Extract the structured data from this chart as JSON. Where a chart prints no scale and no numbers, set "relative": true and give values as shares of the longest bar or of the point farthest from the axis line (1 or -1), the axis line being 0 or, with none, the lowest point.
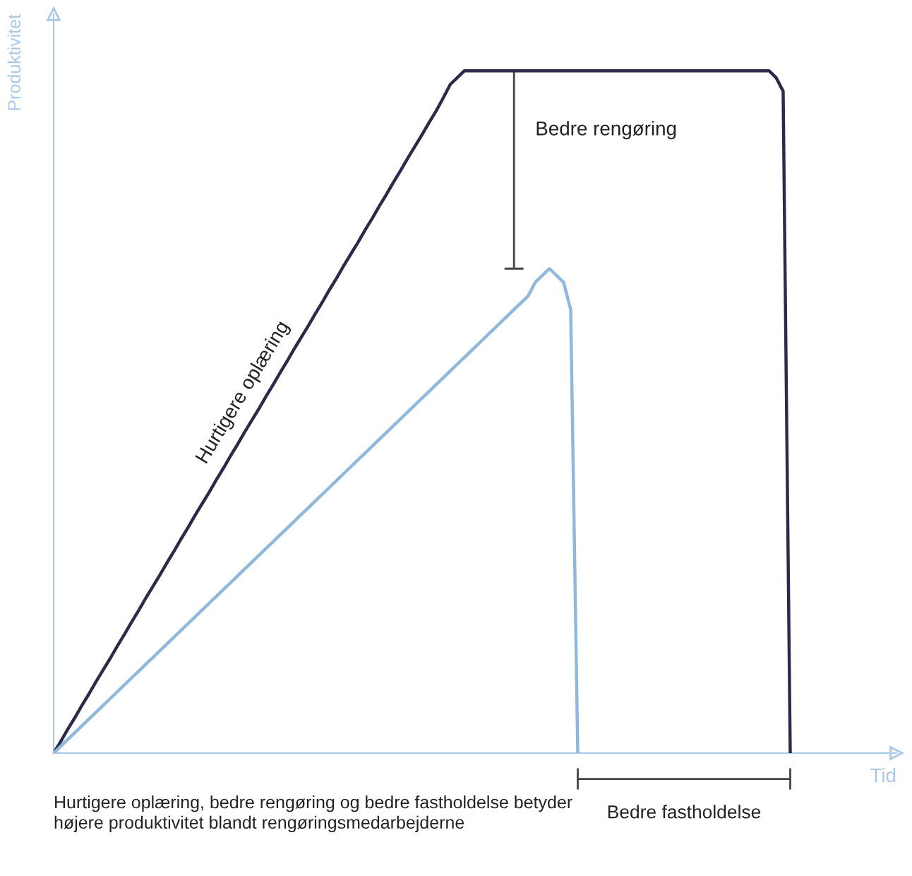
{
  "chart_data": {
    "type": "line",
    "relative": true,
    "xlabel": "Tid",
    "ylabel": "Produktivitet",
    "categories": [
      null,
      null,
      null,
      null,
      null,
      null,
      null,
      null,
      null,
      null,
      null,
      null,
      null,
      null,
      null,
      null,
      null,
      null,
      null,
      null,
      null,
      null,
      null,
      null,
      null,
      null,
      null,
      null,
      null,
      null,
      null,
      null,
      null,
      null,
      null,
      null,
      null,
      null,
      null,
      null,
      null,
      null,
      null,
      null,
      null,
      null,
      null,
      null,
      null,
      null,
      null,
      null,
      null,
      null,
      null,
      null,
      null,
      null,
      null,
      null,
      null,
      null,
      null,
      null,
      null,
      null,
      null,
      null,
      null,
      null,
      null,
      null,
      null,
      null,
      null,
      null,
      null,
      null,
      null,
      null,
      null,
      null,
      null,
      null,
      null,
      null,
      null,
      null,
      null,
      null,
      null,
      null,
      null,
      null,
      null,
      null,
      null,
      null,
      null,
      null,
      null,
      null,
      null,
      null,
      null,
      null,
      null,
      null,
      null,
      null,
      null,
      null,
      null,
      null,
      null,
      null,
      null,
      null,
      null,
      null
    ],
    "series": [
      {
        "color": "#2b2a4a",
        "values": [
          0,
          0.017,
          0.035,
          0.052,
          0.07,
          0.087,
          0.105,
          0.122,
          0.139,
          0.157,
          0.174,
          0.192,
          0.209,
          0.227,
          0.244,
          0.261,
          0.279,
          0.296,
          0.314,
          0.331,
          0.349,
          0.366,
          0.383,
          0.401,
          0.418,
          0.436,
          0.453,
          0.471,
          0.488,
          0.505,
          0.523,
          0.54,
          0.558,
          0.575,
          0.593,
          0.61,
          0.627,
          0.645,
          0.662,
          0.68,
          0.697,
          0.715,
          0.732,
          0.749,
          0.767,
          0.784,
          0.802,
          0.819,
          0.837,
          0.854,
          0.872,
          0.889,
          0.906,
          0.924,
          0.941,
          0.96,
          0.98,
          0.99,
          1,
          1,
          1,
          1,
          1,
          1,
          1,
          1,
          1,
          1,
          1,
          1,
          1,
          1,
          1,
          1,
          1,
          1,
          1,
          1,
          1,
          1,
          1,
          1,
          1,
          1,
          1,
          1,
          1,
          1,
          1,
          1,
          1,
          1,
          1,
          1,
          1,
          1,
          1,
          1,
          1,
          1,
          1,
          1,
          0.99,
          0.97,
          0,
          null,
          null,
          null,
          null,
          null,
          null,
          null,
          null,
          null,
          null,
          null,
          null,
          null,
          null,
          null
        ]
      },
      {
        "color": "#8fb8dd",
        "values": [
          0,
          0.01,
          0.02,
          0.03,
          0.04,
          0.05,
          0.06,
          0.07,
          0.08,
          0.09,
          0.1,
          0.11,
          0.12,
          0.13,
          0.14,
          0.15,
          0.16,
          0.17,
          0.18,
          0.19,
          0.2,
          0.21,
          0.22,
          0.23,
          0.24,
          0.25,
          0.26,
          0.27,
          0.28,
          0.29,
          0.3,
          0.31,
          0.32,
          0.33,
          0.34,
          0.35,
          0.36,
          0.37,
          0.38,
          0.39,
          0.4,
          0.41,
          0.42,
          0.43,
          0.44,
          0.45,
          0.46,
          0.47,
          0.48,
          0.49,
          0.5,
          0.51,
          0.52,
          0.53,
          0.54,
          0.55,
          0.56,
          0.57,
          0.58,
          0.59,
          0.6,
          0.61,
          0.62,
          0.63,
          0.64,
          0.65,
          0.66,
          0.67,
          0.69,
          0.7,
          0.71,
          0.7,
          0.69,
          0.65,
          0,
          null,
          null,
          null,
          null,
          null,
          null,
          null,
          null,
          null,
          null,
          null,
          null,
          null,
          null,
          null,
          null,
          null,
          null,
          null,
          null,
          null,
          null,
          null,
          null,
          null,
          null,
          null,
          null,
          null,
          null,
          null,
          null,
          null,
          null,
          null,
          null,
          null,
          null,
          null,
          null,
          null,
          null,
          null,
          null,
          null
        ]
      }
    ],
    "annotations": [
      "Hurtigere oplæring",
      "Bedre rengøring",
      "Bedre fastholdelse",
      "Hurtigere oplæring, bedre rengøring og bedre fastholdelse betyder højere produktivitet blandt rengøringsmedarbejderne"
    ]
  }
}
